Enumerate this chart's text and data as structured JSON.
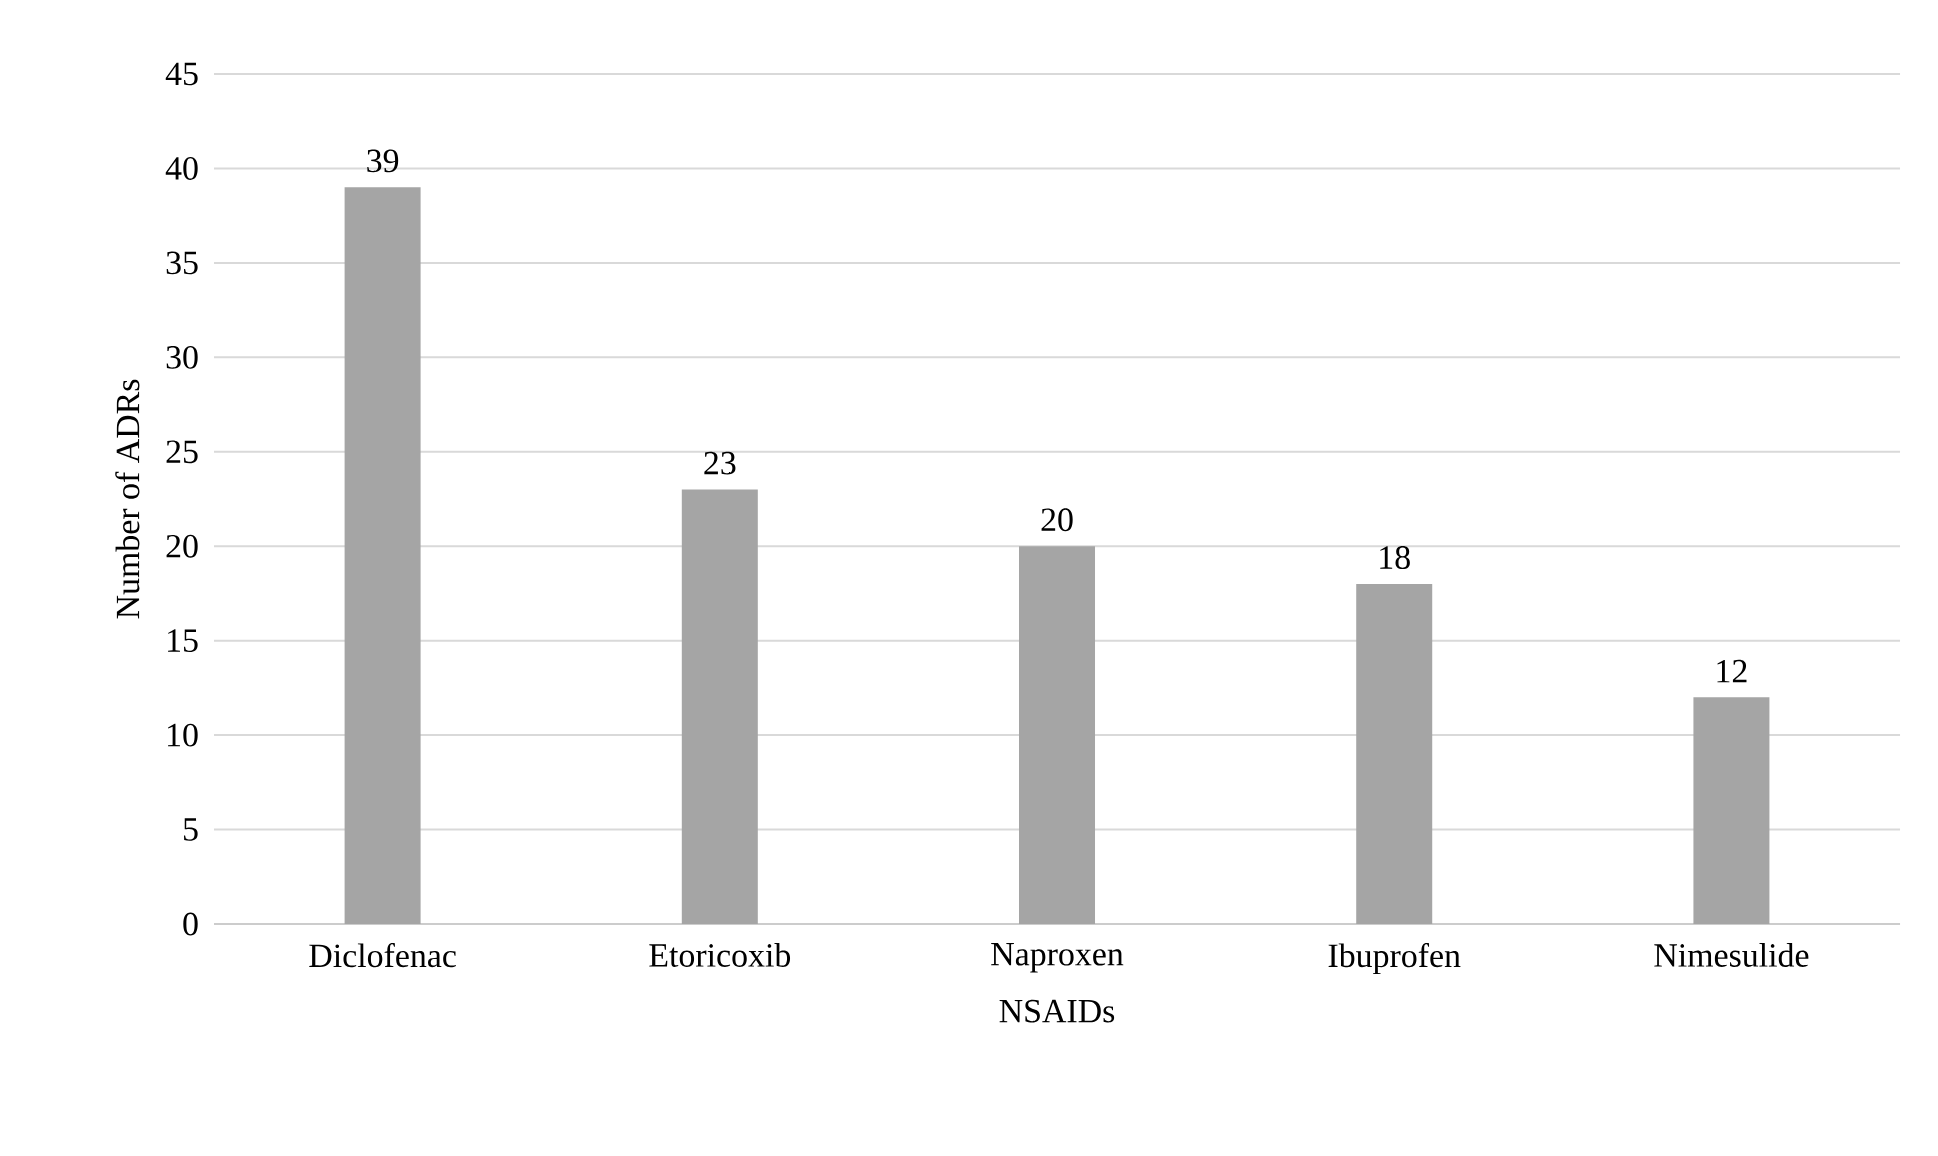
{
  "chart_data": {
    "type": "bar",
    "xlabel": "NSAIDs",
    "ylabel": "Number of ADRs",
    "categories": [
      "Diclofenac",
      "Etoricoxib",
      "Naproxen",
      "Ibuprofen",
      "Nimesulide"
    ],
    "values": [
      39,
      23,
      20,
      18,
      12
    ],
    "color": "#a5a5a5",
    "ylim": [
      0,
      45
    ],
    "yticks": [
      0,
      5,
      10,
      15,
      20,
      25,
      30,
      35,
      40,
      45
    ],
    "grid": "y",
    "data_labels": true
  }
}
